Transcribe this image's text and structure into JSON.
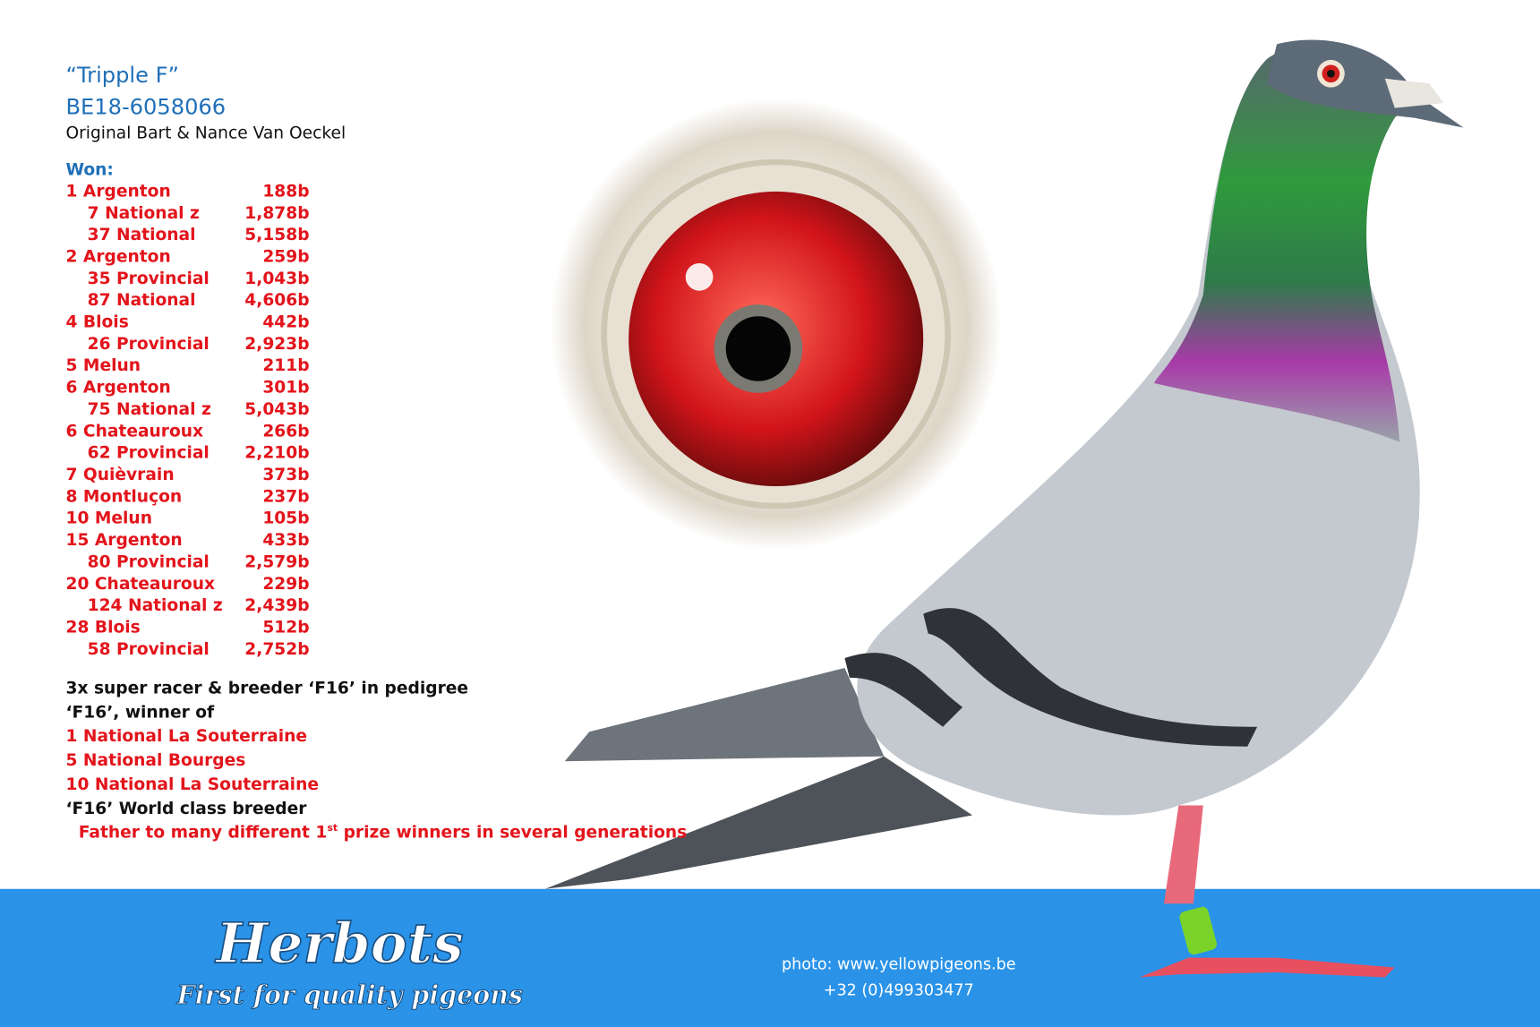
{
  "header": {
    "name": "“Tripple F”",
    "ring": "BE18-6058066",
    "origin": "Original Bart & Nance Van Oeckel"
  },
  "won": {
    "label": "Won:",
    "results": [
      {
        "race": "1 Argenton",
        "birds": "188b",
        "sub": [
          {
            "race": "7 National z",
            "birds": "1,878b"
          },
          {
            "race": "37 National",
            "birds": "5,158b"
          }
        ]
      },
      {
        "race": "2 Argenton",
        "birds": "259b",
        "sub": [
          {
            "race": "35 Provincial",
            "birds": "1,043b"
          },
          {
            "race": "87 National",
            "birds": "4,606b"
          }
        ]
      },
      {
        "race": "4 Blois",
        "birds": "442b",
        "sub": [
          {
            "race": "26 Provincial",
            "birds": "2,923b"
          }
        ]
      },
      {
        "race": "5 Melun",
        "birds": "211b",
        "sub": []
      },
      {
        "race": "6 Argenton",
        "birds": "301b",
        "sub": [
          {
            "race": "75 National z",
            "birds": "5,043b"
          }
        ]
      },
      {
        "race": "6 Chateauroux",
        "birds": "266b",
        "sub": [
          {
            "race": "62 Provincial",
            "birds": "2,210b"
          }
        ]
      },
      {
        "race": "7 Quièvrain",
        "birds": "373b",
        "sub": []
      },
      {
        "race": "8 Montluçon",
        "birds": "237b",
        "sub": []
      },
      {
        "race": "10 Melun",
        "birds": "105b",
        "sub": []
      },
      {
        "race": "15 Argenton",
        "birds": "433b",
        "sub": [
          {
            "race": "80 Provincial",
            "birds": "2,579b"
          }
        ]
      },
      {
        "race": "20 Chateauroux",
        "birds": "229b",
        "sub": [
          {
            "race": "124 National z",
            "birds": "2,439b"
          }
        ]
      },
      {
        "race": "28 Blois",
        "birds": "512b",
        "sub": [
          {
            "race": "58 Provincial",
            "birds": "2,752b"
          }
        ]
      }
    ]
  },
  "pedigree": {
    "intro": "3x super racer & breeder ‘F16’ in pedigree",
    "winner_of": "‘F16’, winner of",
    "wins": [
      "1 National La Souterraine",
      "5 National Bourges",
      "10 National La Souterraine"
    ],
    "breeder": "‘F16’ World class breeder",
    "father": [
      "Father to many different 1",
      "st",
      " prize winners in several generations"
    ]
  },
  "footer": {
    "brand": "Herbots",
    "tagline": "First for quality pigeons",
    "photo": "photo: www.yellowpigeons.be",
    "phone": "+32 (0)499303477"
  }
}
